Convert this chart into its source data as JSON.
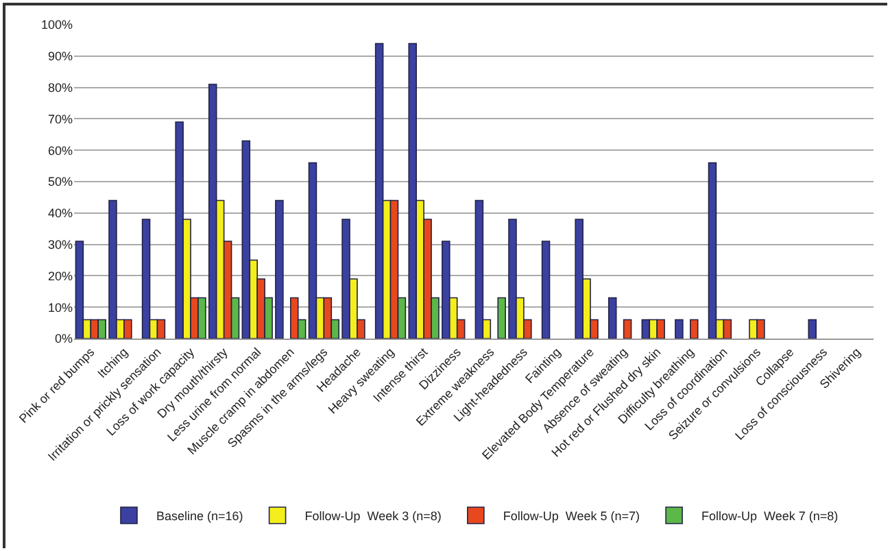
{
  "chart_data": {
    "type": "bar",
    "categories": [
      "Pink or red bumps",
      "Itching",
      "Irritation or prickly sensation",
      "Loss of work capacity",
      "Dry mouth/thirsty",
      "Less urine from normal",
      "Muscle cramp in abdomen",
      "Spasms in the arms/legs",
      "Headache",
      "Heavy sweating",
      "Intense thirst",
      "Dizziness",
      "Extreme weakness",
      "Light-headedness",
      "Fainting",
      "Elevated Body Temperature",
      "Absence of sweating",
      "Hot red or Flushed dry skin",
      "Difficulty breathing",
      "Loss of coordination",
      "Seizure or convulsions",
      "Collapse",
      "Loss of consciousness",
      "Shivering"
    ],
    "series": [
      {
        "name": "Baseline (n=16)",
        "color": "#3b41a0",
        "values": [
          31,
          44,
          38,
          69,
          81,
          63,
          44,
          56,
          38,
          94,
          94,
          31,
          44,
          38,
          31,
          38,
          13,
          6,
          6,
          56,
          0,
          0,
          6,
          0
        ]
      },
      {
        "name": "Follow-Up  Week 3 (n=8)",
        "color": "#f3ee1c",
        "values": [
          6,
          6,
          6,
          38,
          44,
          25,
          0,
          13,
          19,
          44,
          44,
          13,
          6,
          13,
          0,
          19,
          0,
          6,
          0,
          6,
          6,
          0,
          0,
          0
        ]
      },
      {
        "name": "Follow-Up  Week 5 (n=7)",
        "color": "#e8481e",
        "values": [
          6,
          6,
          6,
          13,
          31,
          19,
          13,
          13,
          6,
          44,
          38,
          6,
          0,
          6,
          0,
          6,
          6,
          6,
          6,
          6,
          6,
          0,
          0,
          0
        ]
      },
      {
        "name": "Follow-Up  Week 7 (n=8)",
        "color": "#5cb848",
        "values": [
          6,
          0,
          0,
          13,
          13,
          13,
          6,
          6,
          0,
          13,
          13,
          0,
          13,
          0,
          0,
          0,
          0,
          0,
          0,
          0,
          0,
          0,
          0,
          0
        ]
      }
    ],
    "ylim": [
      0,
      100
    ],
    "yticks": [
      {
        "value": 0,
        "label": "0%"
      },
      {
        "value": 10,
        "label": "10%"
      },
      {
        "value": 20,
        "label": "20%"
      },
      {
        "value": 30,
        "label": "30%"
      },
      {
        "value": 40,
        "label": "40%"
      },
      {
        "value": 50,
        "label": "50%"
      },
      {
        "value": 60,
        "label": "60%"
      },
      {
        "value": 70,
        "label": "70%"
      },
      {
        "value": 80,
        "label": "80%"
      },
      {
        "value": 90,
        "label": "90%"
      },
      {
        "value": 100,
        "label": "100%"
      }
    ],
    "grid": "y",
    "legend": "bottom"
  }
}
